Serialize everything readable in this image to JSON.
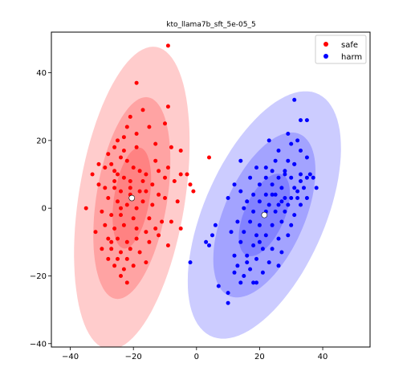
{
  "chart_data": {
    "type": "scatter",
    "title": "kto_llama7b_sft_5e-05_5",
    "xlabel": "",
    "ylabel": "",
    "xlim": [
      -46,
      55
    ],
    "ylim": [
      -41,
      52
    ],
    "xticks": [
      -40,
      -20,
      0,
      20,
      40
    ],
    "yticks": [
      -40,
      -20,
      0,
      20,
      40
    ],
    "tick_labels_x": [
      "−40",
      "−20",
      "0",
      "20",
      "40"
    ],
    "tick_labels_y": [
      "−40",
      "−20",
      "0",
      "20",
      "40"
    ],
    "grid": false,
    "legend_position": "top-right",
    "series": [
      {
        "name": "safe",
        "color": "#ff0000",
        "mean": [
          -20.5,
          3
        ],
        "ellipse_angle_deg": 10,
        "ellipse_semi_axes": [
          [
            5.6,
            15.1
          ],
          [
            11.2,
            30.2
          ],
          [
            16.8,
            45.3
          ]
        ],
        "points": [
          [
            -9,
            48
          ],
          [
            -19,
            37
          ],
          [
            -17,
            29
          ],
          [
            -21,
            27
          ],
          [
            -9,
            30
          ],
          [
            -22,
            24
          ],
          [
            -15,
            24
          ],
          [
            -19,
            22
          ],
          [
            -23,
            21
          ],
          [
            -25,
            20
          ],
          [
            -10,
            25
          ],
          [
            -26,
            18
          ],
          [
            -23,
            17
          ],
          [
            -19,
            18
          ],
          [
            -13,
            19
          ],
          [
            -8,
            18
          ],
          [
            -5,
            17
          ],
          [
            -28,
            16
          ],
          [
            -24,
            15
          ],
          [
            -22,
            14
          ],
          [
            -27,
            13
          ],
          [
            -31,
            13
          ],
          [
            -29,
            12
          ],
          [
            -26,
            11
          ],
          [
            -20,
            12
          ],
          [
            -18,
            11
          ],
          [
            -16,
            10
          ],
          [
            -12,
            11
          ],
          [
            -9,
            12
          ],
          [
            -5,
            10
          ],
          [
            -3,
            10
          ],
          [
            4,
            15
          ],
          [
            -33,
            10
          ],
          [
            -25,
            10
          ],
          [
            -23,
            9
          ],
          [
            -26,
            8
          ],
          [
            -21,
            8
          ],
          [
            -17,
            8
          ],
          [
            -14,
            7
          ],
          [
            -10,
            9
          ],
          [
            -7,
            8
          ],
          [
            -2,
            7
          ],
          [
            -29,
            6
          ],
          [
            -26,
            6
          ],
          [
            -24,
            5
          ],
          [
            -21,
            4
          ],
          [
            -18,
            5
          ],
          [
            -16,
            5
          ],
          [
            -12,
            4
          ],
          [
            -10,
            3
          ],
          [
            -6,
            2
          ],
          [
            -1,
            5
          ],
          [
            -28,
            3
          ],
          [
            -25,
            2
          ],
          [
            -22,
            1
          ],
          [
            -19,
            0
          ],
          [
            -17,
            2
          ],
          [
            -14,
            1
          ],
          [
            -30,
            -1
          ],
          [
            -27,
            -2
          ],
          [
            -24,
            -2
          ],
          [
            -20,
            -3
          ],
          [
            -15,
            -3
          ],
          [
            -11,
            -4
          ],
          [
            -8,
            -4
          ],
          [
            -29,
            -5
          ],
          [
            -26,
            -6
          ],
          [
            -23,
            -5
          ],
          [
            -19,
            -6
          ],
          [
            -16,
            -7
          ],
          [
            -13,
            -6
          ],
          [
            -32,
            -7
          ],
          [
            -28,
            -9
          ],
          [
            -25,
            -9
          ],
          [
            -22,
            -10
          ],
          [
            -19,
            -9
          ],
          [
            -30,
            -12
          ],
          [
            -27,
            -12
          ],
          [
            -24,
            -13
          ],
          [
            -21,
            -12
          ],
          [
            -18,
            -13
          ],
          [
            -28,
            -15
          ],
          [
            -25,
            -15
          ],
          [
            -22,
            -15
          ],
          [
            -26,
            -17
          ],
          [
            -23,
            -18
          ],
          [
            -20,
            -17
          ],
          [
            -16,
            -16
          ],
          [
            -24,
            -20
          ],
          [
            -22,
            -22
          ],
          [
            -9,
            -11
          ],
          [
            -5,
            -6
          ],
          [
            -35,
            0
          ],
          [
            -31,
            7
          ],
          [
            -24,
            0
          ],
          [
            -21,
            6
          ],
          [
            -13,
            14
          ],
          [
            -15,
            -10
          ],
          [
            -12,
            -8
          ],
          [
            -27,
            -10
          ]
        ]
      },
      {
        "name": "harm",
        "color": "#0000ff",
        "mean": [
          21.5,
          -2
        ],
        "ellipse_angle_deg": 26,
        "ellipse_semi_axes": [
          [
            6.3,
            13.2
          ],
          [
            12.6,
            26.4
          ],
          [
            18.9,
            39.6
          ]
        ],
        "points": [
          [
            31,
            32
          ],
          [
            33,
            26
          ],
          [
            35,
            26
          ],
          [
            29,
            22
          ],
          [
            32,
            20
          ],
          [
            23,
            20
          ],
          [
            30,
            19
          ],
          [
            26,
            17
          ],
          [
            33,
            17
          ],
          [
            14,
            14
          ],
          [
            25,
            14
          ],
          [
            29,
            14
          ],
          [
            31,
            13
          ],
          [
            19,
            12
          ],
          [
            24,
            11
          ],
          [
            28,
            11
          ],
          [
            33,
            10
          ],
          [
            36,
            10
          ],
          [
            17,
            9
          ],
          [
            22,
            9
          ],
          [
            26,
            9
          ],
          [
            30,
            9
          ],
          [
            35,
            9
          ],
          [
            37,
            9
          ],
          [
            12,
            7
          ],
          [
            20,
            7
          ],
          [
            24,
            7
          ],
          [
            27,
            6
          ],
          [
            31,
            6
          ],
          [
            34,
            6
          ],
          [
            38,
            6
          ],
          [
            14,
            5
          ],
          [
            18,
            4
          ],
          [
            22,
            4
          ],
          [
            25,
            4
          ],
          [
            28,
            3
          ],
          [
            32,
            3
          ],
          [
            35,
            3
          ],
          [
            10,
            3
          ],
          [
            16,
            2
          ],
          [
            20,
            2
          ],
          [
            23,
            1
          ],
          [
            26,
            1
          ],
          [
            29,
            1
          ],
          [
            33,
            1
          ],
          [
            15,
            0
          ],
          [
            18,
            -1
          ],
          [
            22,
            -1
          ],
          [
            25,
            -1
          ],
          [
            28,
            -1
          ],
          [
            31,
            -2
          ],
          [
            6,
            -5
          ],
          [
            13,
            -4
          ],
          [
            17,
            -4
          ],
          [
            20,
            -5
          ],
          [
            24,
            -5
          ],
          [
            27,
            -4
          ],
          [
            30,
            -5
          ],
          [
            11,
            -7
          ],
          [
            15,
            -7
          ],
          [
            19,
            -8
          ],
          [
            22,
            -8
          ],
          [
            26,
            -9
          ],
          [
            29,
            -8
          ],
          [
            14,
            -10
          ],
          [
            18,
            -11
          ],
          [
            21,
            -12
          ],
          [
            24,
            -12
          ],
          [
            27,
            -13
          ],
          [
            12,
            -14
          ],
          [
            16,
            -14
          ],
          [
            19,
            -15
          ],
          [
            23,
            -16
          ],
          [
            26,
            -17
          ],
          [
            13,
            -17
          ],
          [
            17,
            -18
          ],
          [
            21,
            -19
          ],
          [
            12,
            -19
          ],
          [
            15,
            -20
          ],
          [
            18,
            -22
          ],
          [
            14,
            -22
          ],
          [
            19,
            -22
          ],
          [
            10,
            -25
          ],
          [
            7,
            -23
          ],
          [
            3,
            -10
          ],
          [
            -2,
            -16
          ],
          [
            4,
            -11
          ],
          [
            5,
            -8
          ],
          [
            10,
            -28
          ],
          [
            16,
            -16
          ],
          [
            28,
            10
          ],
          [
            22,
            12
          ],
          [
            31,
            13
          ],
          [
            35,
            15
          ],
          [
            20,
            -10
          ],
          [
            24,
            4
          ],
          [
            27,
            2
          ],
          [
            30,
            3
          ],
          [
            32,
            5
          ],
          [
            33,
            8
          ]
        ]
      }
    ]
  }
}
